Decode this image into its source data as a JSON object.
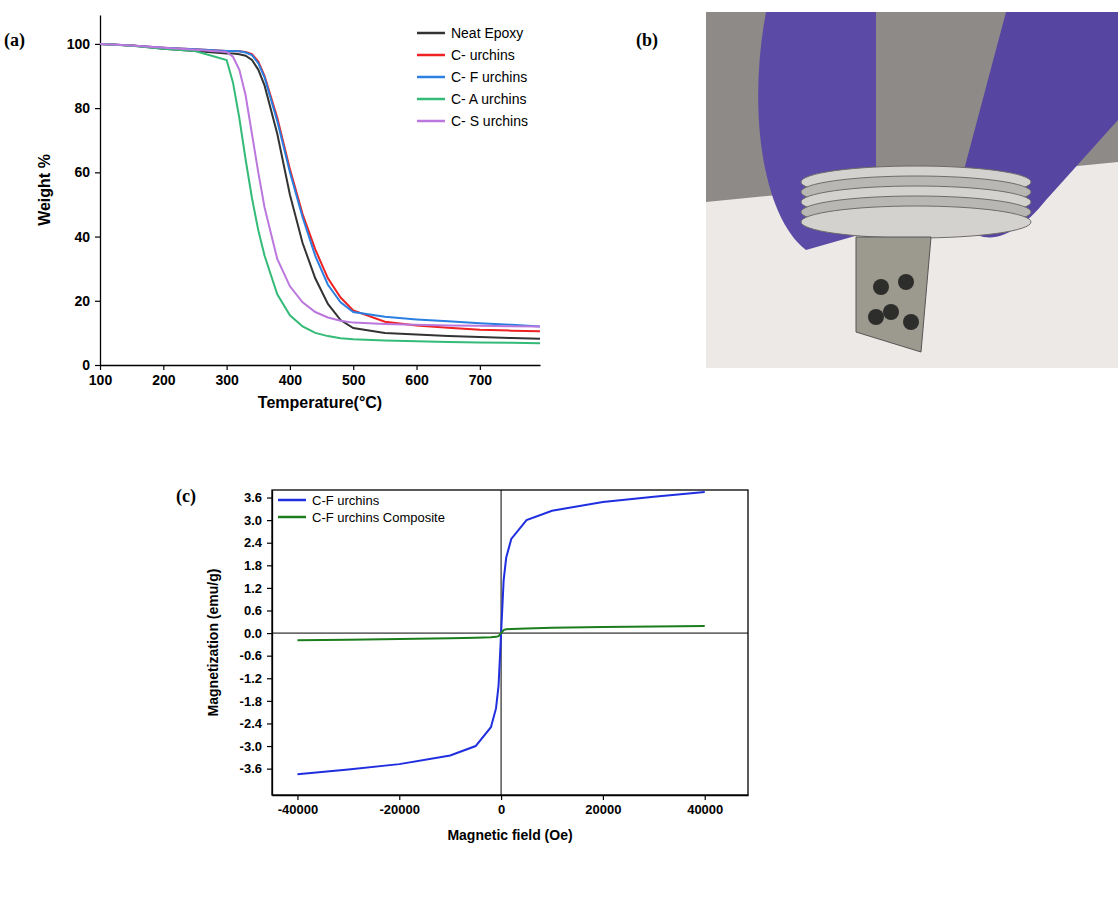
{
  "chart_data": [
    {
      "type": "line",
      "panel_label": "(a)",
      "x_label": "Temperature(°C)",
      "y_label": "Weight %",
      "x": [
        100,
        150,
        200,
        250,
        300,
        310,
        320,
        330,
        340,
        350,
        360,
        380,
        400,
        420,
        440,
        460,
        480,
        500,
        550,
        600,
        650,
        700,
        750,
        795
      ],
      "series": [
        {
          "name": "Neat Epoxy",
          "color": "#333333",
          "values": [
            100,
            99.5,
            98.5,
            97.8,
            97,
            97,
            96.8,
            96.3,
            95,
            92,
            87,
            72,
            53,
            38,
            27,
            19,
            14,
            11.5,
            10,
            9.5,
            9,
            8.7,
            8.4,
            8.2
          ]
        },
        {
          "name": "C- urchins",
          "color": "#ee2222",
          "values": [
            100,
            99.5,
            98.8,
            98.3,
            97.8,
            97.8,
            97.7,
            97.5,
            96.8,
            94.5,
            90,
            77,
            61,
            47,
            36,
            27,
            21,
            17,
            13.5,
            12.3,
            11.6,
            11,
            10.7,
            10.5
          ]
        },
        {
          "name": "C- F urchins",
          "color": "#2a7fe0",
          "values": [
            100,
            99.5,
            98.8,
            98.3,
            97.8,
            97.8,
            97.7,
            97.3,
            96.5,
            94,
            89.5,
            76,
            60,
            46,
            34,
            25,
            19.5,
            16.5,
            15,
            14.2,
            13.6,
            13,
            12.5,
            12
          ]
        },
        {
          "name": "C- A urchins",
          "color": "#33bb77",
          "values": [
            100,
            99.4,
            98.5,
            97.8,
            95,
            88,
            77,
            64,
            52,
            42,
            34,
            22,
            15.5,
            12,
            10,
            9,
            8.3,
            8,
            7.6,
            7.4,
            7.2,
            7,
            6.9,
            6.8
          ]
        },
        {
          "name": "C- S urchins",
          "color": "#bb77dd",
          "values": [
            100,
            99.5,
            98.8,
            98.2,
            97.5,
            96,
            92,
            84,
            72,
            60,
            49,
            33,
            24.5,
            19.5,
            16.5,
            14.8,
            13.8,
            13.2,
            12.8,
            12.5,
            12.3,
            12.2,
            12.1,
            12
          ]
        }
      ],
      "xlim": [
        100,
        795
      ],
      "ylim": [
        0,
        109
      ],
      "xticks": [
        100,
        200,
        300,
        400,
        500,
        600,
        700
      ],
      "yticks": [
        0,
        20,
        40,
        60,
        80,
        100
      ],
      "legend": "upper right"
    },
    {
      "type": "line",
      "panel_label": "(c)",
      "x_label": "Magnetic field (Oe)",
      "y_label": "Magnetization (emu/g)",
      "x": [
        -40000,
        -30000,
        -20000,
        -10000,
        -5000,
        -2000,
        -1000,
        -500,
        0,
        500,
        1000,
        2000,
        5000,
        10000,
        20000,
        30000,
        40000
      ],
      "series": [
        {
          "name": "C-F urchins",
          "color": "#1f2fe0",
          "values": [
            -3.75,
            -3.62,
            -3.48,
            -3.25,
            -3.0,
            -2.5,
            -2.0,
            -1.4,
            0,
            1.4,
            2.0,
            2.5,
            3.0,
            3.25,
            3.48,
            3.62,
            3.75
          ]
        },
        {
          "name": "C-F urchins Composite",
          "color": "#1b7d1b",
          "values": [
            -0.19,
            -0.175,
            -0.16,
            -0.14,
            -0.125,
            -0.11,
            -0.1,
            -0.08,
            0,
            0.08,
            0.1,
            0.11,
            0.125,
            0.14,
            0.16,
            0.175,
            0.19
          ]
        }
      ],
      "xlim": [
        -45000,
        48500
      ],
      "ylim": [
        -4.3,
        3.8
      ],
      "xticks": [
        -40000,
        -20000,
        0,
        20000,
        40000
      ],
      "yticks": [
        -3.6,
        {
          "value": -3,
          "label": "-3.0"
        },
        -2.4,
        -1.8,
        -1.2,
        -0.6,
        {
          "value": 0,
          "label": "0.0"
        },
        0.6,
        1.2,
        1.8,
        2.4,
        {
          "value": 3,
          "label": "3.0"
        },
        3.6
      ],
      "legend": "upper left"
    }
  ],
  "photo": {
    "panel_label": "(b)"
  }
}
